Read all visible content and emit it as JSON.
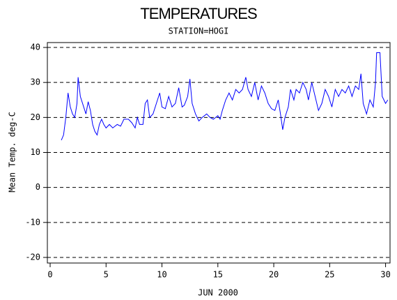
{
  "chart_data": {
    "type": "line",
    "title": "TEMPERATURES",
    "subtitle": "STATION=HOGI",
    "x_label": "JUN 2000",
    "y_label": "Mean Temp. deg-C",
    "xlim": [
      -0.25,
      30.4
    ],
    "ylim": [
      -21.6,
      41.4
    ],
    "xticks": [
      0,
      5,
      10,
      15,
      20,
      25,
      30
    ],
    "yticks": [
      -20,
      -10,
      0,
      10,
      20,
      30,
      40
    ],
    "grid": true,
    "series": [
      {
        "color": "#0000ff",
        "x": [
          1.0,
          1.2,
          1.4,
          1.6,
          1.8,
          2.0,
          2.2,
          2.4,
          2.5,
          2.7,
          3.0,
          3.2,
          3.4,
          3.6,
          3.8,
          4.0,
          4.2,
          4.4,
          4.6,
          4.8,
          5.0,
          5.3,
          5.6,
          6.0,
          6.3,
          6.6,
          7.0,
          7.3,
          7.6,
          7.8,
          8.0,
          8.3,
          8.5,
          8.7,
          8.9,
          9.2,
          9.5,
          9.8,
          10.0,
          10.3,
          10.6,
          10.9,
          11.2,
          11.5,
          11.8,
          12.0,
          12.3,
          12.5,
          12.7,
          13.0,
          13.3,
          13.6,
          14.0,
          14.3,
          14.6,
          15.0,
          15.2,
          15.4,
          15.7,
          16.0,
          16.3,
          16.6,
          16.9,
          17.2,
          17.5,
          17.7,
          18.0,
          18.3,
          18.6,
          18.9,
          19.2,
          19.5,
          19.8,
          20.1,
          20.4,
          20.6,
          20.8,
          21.0,
          21.3,
          21.5,
          21.8,
          22.0,
          22.3,
          22.6,
          22.9,
          23.1,
          23.4,
          23.7,
          24.0,
          24.3,
          24.6,
          24.9,
          25.2,
          25.5,
          25.8,
          26.1,
          26.4,
          26.7,
          27.0,
          27.3,
          27.6,
          27.8,
          28.0,
          28.3,
          28.6,
          28.9,
          29.1,
          29.2,
          29.5,
          29.7,
          30.0,
          30.2
        ],
        "values": [
          13.5,
          15,
          20,
          27,
          23,
          21,
          20,
          24,
          31.5,
          26,
          23,
          21,
          24.5,
          22,
          18,
          16,
          15,
          18,
          19.5,
          18,
          17,
          18,
          17,
          18,
          17.5,
          19.5,
          19.5,
          18.5,
          17,
          20,
          18,
          18,
          24,
          25,
          20,
          21,
          24,
          27,
          23,
          22.5,
          26,
          23,
          24,
          28.5,
          23,
          23.5,
          26,
          31,
          24,
          21,
          19,
          20,
          21,
          20,
          19.5,
          20.5,
          19.5,
          22,
          25,
          27,
          25,
          28,
          27,
          28,
          31.5,
          28,
          26,
          30,
          25,
          29,
          27,
          24,
          22.5,
          22,
          25,
          21,
          16.5,
          20,
          23,
          28,
          25,
          28,
          27,
          30,
          28,
          25,
          30,
          26,
          22,
          24,
          28,
          26,
          23,
          28,
          26,
          28,
          27,
          29,
          26,
          29,
          28,
          32.5,
          24,
          21,
          25,
          23,
          30,
          38.5,
          38.5,
          26,
          24,
          25
        ]
      }
    ]
  }
}
